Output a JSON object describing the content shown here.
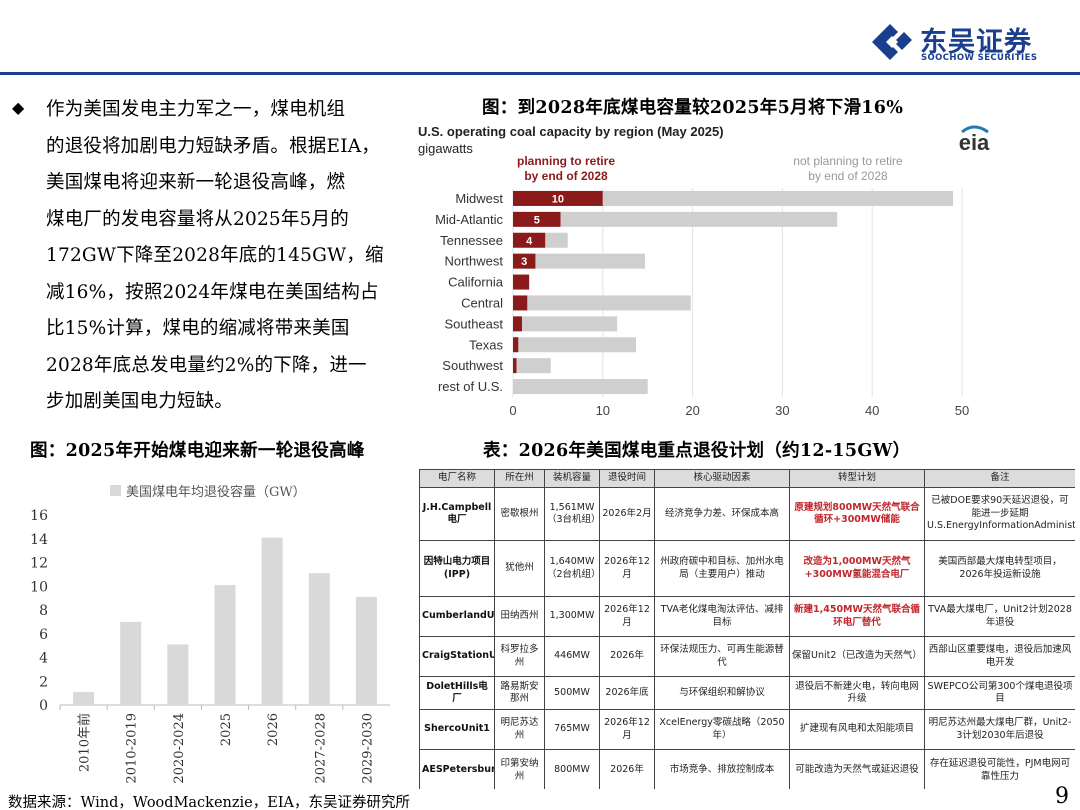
{
  "header": {
    "company_cn": "东吴证券",
    "company_en": "SOOCHOW SECURITIES",
    "brand_color": "#1b3f8f"
  },
  "bullet": {
    "icon": "diamond-bullet-icon",
    "lines": [
      "作为美国发电主力军之一，煤电机组",
      "的退役将加剧电力短缺矛盾。根据EIA，",
      "美国煤电将迎来新一轮退役高峰，燃",
      "煤电厂的发电容量将从2025年5月的",
      "172GW下降至2028年底的145GW，缩",
      "减16%，按照2024年煤电在美国结构占",
      "比15%计算，煤电的缩减将带来美国",
      "2028年底总发电量约2%的下降，进一",
      "步加剧美国电力短缺。"
    ]
  },
  "titles": {
    "fig1": "图：到2028年底煤电容量较2025年5月将下滑16%",
    "fig2": "图：2025年开始煤电迎来新一轮退役高峰",
    "table": "表：2026年美国煤电重点退役计划（约12-15GW）"
  },
  "eia_chart": {
    "logo_text": "eia",
    "title": "U.S. operating coal capacity by region (May 2025)",
    "unit": "gigawatts",
    "legend_retire": [
      "planning to retire",
      "by end of 2028"
    ],
    "legend_not": [
      "not planning to retire",
      "by end of 2028"
    ]
  },
  "source": "数据来源：Wind，WoodMackenzie，EIA，东吴证券研究所",
  "page_number": "9",
  "chart_data": [
    {
      "type": "bar",
      "orientation": "horizontal",
      "stacked": true,
      "title": "U.S. operating coal capacity by region (May 2025)",
      "ylabel": "gigawatts",
      "categories": [
        "Midwest",
        "Mid-Atlantic",
        "Tennessee",
        "Northwest",
        "California",
        "Central",
        "Southeast",
        "Texas",
        "Southwest",
        "rest of U.S."
      ],
      "series": [
        {
          "name": "planning to retire by end of 2028",
          "color": "#8b1a1a",
          "values": [
            10,
            5.3,
            3.6,
            2.5,
            1.8,
            1.6,
            1.0,
            0.6,
            0.4,
            0
          ],
          "labels": [
            "10",
            "5",
            "4",
            "3",
            "",
            "",
            "",
            "",
            "",
            ""
          ]
        },
        {
          "name": "not planning to retire by end of 2028",
          "color": "#cfcfcf",
          "values": [
            39,
            30.8,
            2.5,
            12.2,
            0,
            18.2,
            10.6,
            13.1,
            3.8,
            15
          ]
        }
      ],
      "xlim": [
        0,
        50
      ],
      "xticks": [
        0,
        10,
        20,
        30,
        40,
        50
      ],
      "grid": "vertical"
    },
    {
      "type": "bar",
      "title": "",
      "legend": "美国煤电年均退役容量（GW）",
      "categories": [
        "2010年前",
        "2010-2019",
        "2020-2024",
        "2025",
        "2026",
        "2027-2028",
        "2029-2030"
      ],
      "values": [
        1.1,
        7,
        5.1,
        10.1,
        14.1,
        11.1,
        9.1
      ],
      "ylim": [
        0,
        16
      ],
      "yticks": [
        0,
        2,
        4,
        6,
        8,
        10,
        12,
        14,
        16
      ],
      "color": "#d9d9d9"
    }
  ],
  "table": {
    "headers": [
      "电厂名称",
      "所在州",
      "装机容量",
      "退役时间",
      "核心驱动因素",
      "转型计划",
      "备注"
    ],
    "rows": [
      {
        "plant": "J.H.Campbell电厂",
        "state": "密歇根州",
        "capacity": "1,561MW（3台机组）",
        "time": "2026年2月",
        "driver": "经济竞争力差、环保成本高",
        "plan": "原建规划800MW天然气联合循环+300MW储能",
        "plan_red": true,
        "note": "已被DOE要求90天延迟退役，可能进一步延期U.S.EnergyInformationAdministration(EIA)"
      },
      {
        "plant": "因特山电力项目(IPP)",
        "state": "犹他州",
        "capacity": "1,640MW（2台机组）",
        "time": "2026年12月",
        "driver": "州政府碳中和目标、加州水电局（主要用户）推动",
        "plan": "改造为1,000MW天然气+300MW氢能混合电厂",
        "plan_red": true,
        "note": "美国西部最大煤电转型项目，2026年投运新设施"
      },
      {
        "plant": "CumberlandUnit1",
        "state": "田纳西州",
        "capacity": "1,300MW",
        "time": "2026年12月",
        "driver": "TVA老化煤电淘汰评估、减排目标",
        "plan": "新建1,450MW天然气联合循环电厂替代",
        "plan_red": true,
        "note": "TVA最大煤电厂，Unit2计划2028年退役"
      },
      {
        "plant": "CraigStationUnit1",
        "state": "科罗拉多州",
        "capacity": "446MW",
        "time": "2026年",
        "driver": "环保法规压力、可再生能源替代",
        "plan": "保留Unit2（已改造为天然气）",
        "plan_red": false,
        "note": "西部山区重要煤电，退役后加速风电开发"
      },
      {
        "plant": "DoletHills电厂",
        "state": "路易斯安那州",
        "capacity": "500MW",
        "time": "2026年底",
        "driver": "与环保组织和解协议",
        "plan": "退役后不新建火电，转向电网升级",
        "plan_red": false,
        "note": "SWEPCO公司第300个煤电退役项目"
      },
      {
        "plant": "ShercoUnit1",
        "state": "明尼苏达州",
        "capacity": "765MW",
        "time": "2026年12月",
        "driver": "XcelEnergy零碳战略（2050年）",
        "plan": "扩建现有风电和太阳能项目",
        "plan_red": false,
        "note": "明尼苏达州最大煤电厂群，Unit2-3计划2030年后退役"
      },
      {
        "plant": "AESPetersburgUnits3&4",
        "state": "印第安纳州",
        "capacity": "800MW",
        "time": "2026年",
        "driver": "市场竞争、排放控制成本",
        "plan": "可能改造为天然气或延迟退役",
        "plan_red": false,
        "note": "存在延迟退役可能性，PJM电网可靠性压力"
      }
    ]
  }
}
